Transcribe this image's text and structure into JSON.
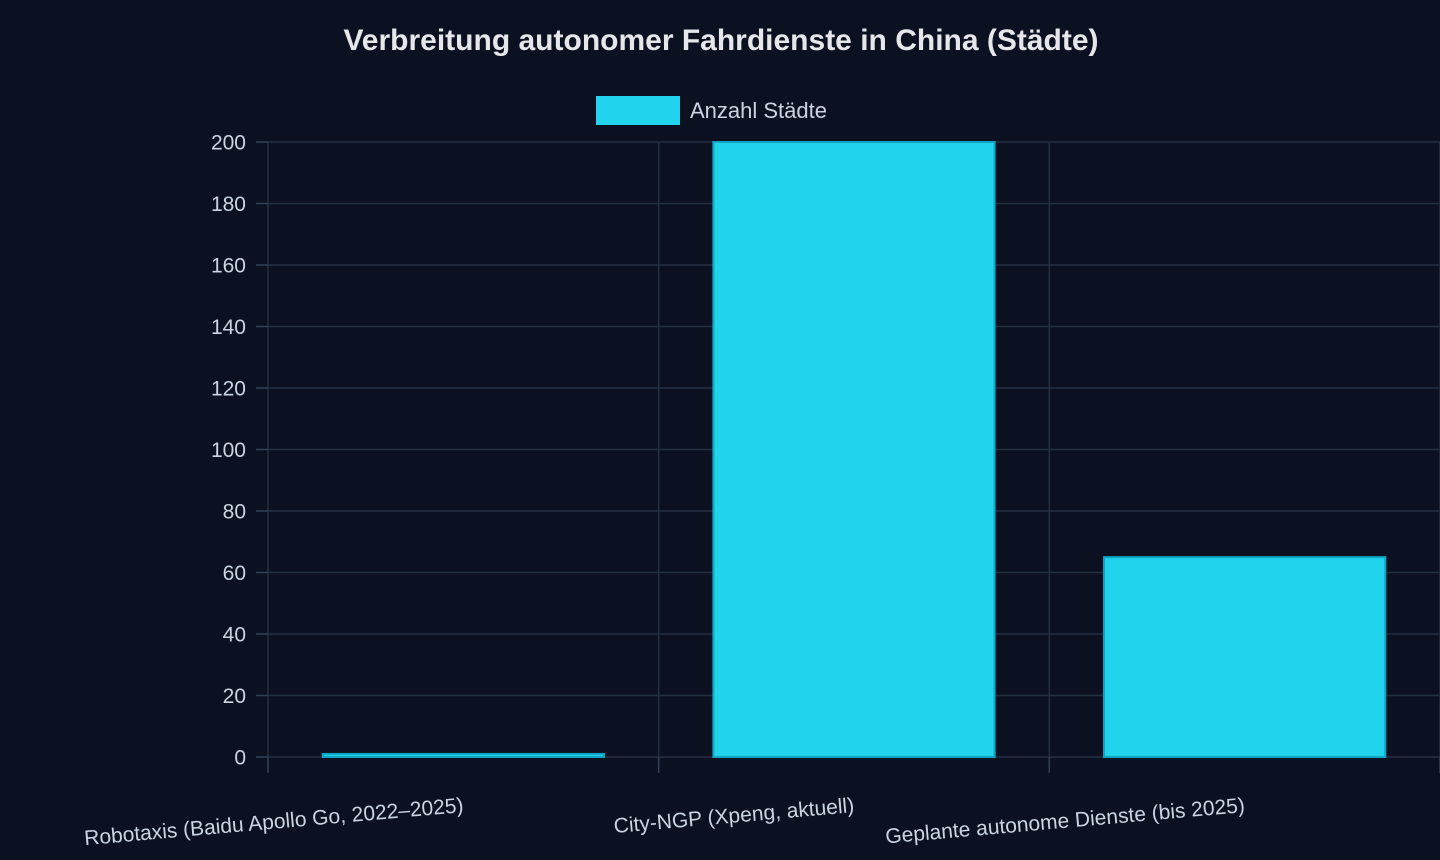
{
  "chart_data": {
    "type": "bar",
    "title": "Verbreitung autonomer Fahrdienste in China (Städte)",
    "categories": [
      "Robotaxis (Baidu Apollo Go, 2022–2025)",
      "City-NGP (Xpeng, aktuell)",
      "Geplante autonome Dienste (bis 2025)"
    ],
    "series": [
      {
        "name": "Anzahl Städte",
        "values": [
          1,
          200,
          65
        ]
      }
    ],
    "ylim": [
      0,
      200
    ],
    "yticks": [
      0,
      20,
      40,
      60,
      80,
      100,
      120,
      140,
      160,
      180,
      200
    ],
    "xlabel": "",
    "ylabel": "",
    "grid": true,
    "legend_position": "top-center",
    "colors": {
      "background": "#0b1120",
      "bar_fill": "#22d3ee",
      "bar_stroke": "#0ea5c4",
      "grid": "#243042",
      "text": "#cbd5e1",
      "title": "#e5e7eb"
    }
  }
}
